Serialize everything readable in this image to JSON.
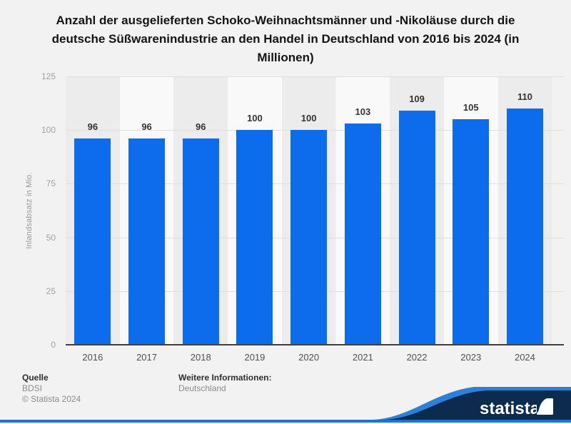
{
  "title": "Anzahl der ausgelieferten Schoko-Weihnachtsmänner und -Nikoläuse durch die deutsche Süßwarenindustrie an den Handel in Deutschland von 2016 bis 2024 (in Millionen)",
  "chart_data": {
    "type": "bar",
    "categories": [
      "2016",
      "2017",
      "2018",
      "2019",
      "2020",
      "2021",
      "2022",
      "2023",
      "2024"
    ],
    "values": [
      96,
      96,
      96,
      100,
      100,
      103,
      109,
      105,
      110
    ],
    "title": "Anzahl der ausgelieferten Schoko-Weihnachtsmänner und -Nikoläuse durch die deutsche Süßwarenindustrie an den Handel in Deutschland von 2016 bis 2024 (in Millionen)",
    "xlabel": "",
    "ylabel": "Inlandsabsatz in Mio.",
    "ylim": [
      0,
      125
    ],
    "yticks": [
      0,
      25,
      50,
      75,
      100,
      125
    ],
    "grid": true,
    "legend": false,
    "data_labels": true,
    "bar_color": "#0c6ceb"
  },
  "footer": {
    "source_label": "Quelle",
    "source": "BDSI",
    "copyright": "© Statista 2024",
    "info_label": "Weitere Informationen:",
    "info": "Deutschland"
  },
  "branding": {
    "logo_text": "statista",
    "navy": "#0d2b4e",
    "light_blue": "#2e7fd9",
    "accent_line_blue": "#1a74dc"
  }
}
